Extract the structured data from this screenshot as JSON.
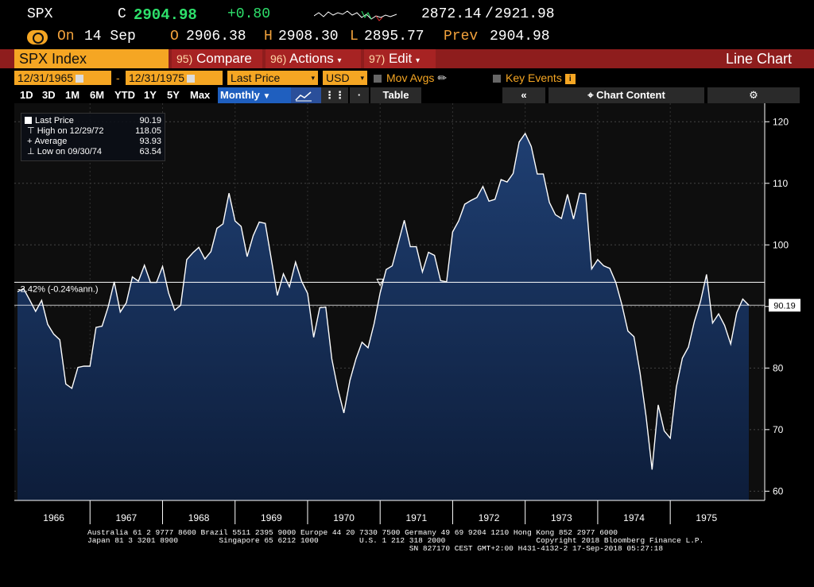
{
  "quote": {
    "ticker": "SPX",
    "close_prefix": "C",
    "close": "2904.98",
    "change": "+0.80",
    "range_low": "2872.14",
    "range_sep": "/",
    "range_high": "2921.98",
    "date_badge": "On",
    "date": "14 Sep",
    "open_label": "O",
    "open": "2906.38",
    "high_label": "H",
    "high": "2908.30",
    "low_label": "L",
    "low": "2895.77",
    "prev_label": "Prev",
    "prev": "2904.98"
  },
  "menubar": {
    "security": "SPX Index",
    "compare_num": "95)",
    "compare": "Compare",
    "actions_num": "96)",
    "actions": "Actions",
    "edit_num": "97)",
    "edit": "Edit",
    "chart_type": "Line Chart"
  },
  "controls": {
    "start_date": "12/31/1965",
    "dash": "-",
    "end_date": "12/31/1975",
    "field": "Last Price",
    "currency": "USD",
    "mov_avgs": "Mov Avgs",
    "key_events": "Key Events"
  },
  "range_buttons": [
    "1D",
    "3D",
    "1M",
    "6M",
    "YTD",
    "1Y",
    "5Y",
    "Max"
  ],
  "periodicity": "Monthly",
  "table_button": "Table",
  "chart_content_button": "Chart Content",
  "legend": {
    "last_price_label": "Last Price",
    "last_price": "90.19",
    "high_label": "High on 12/29/72",
    "high": "118.05",
    "average_label": "Average",
    "average": "93.93",
    "low_label": "Low on 09/30/74",
    "low": "63.54"
  },
  "colors": {
    "line": "#ffffff",
    "area_top": "#1f3f72",
    "area_bottom": "#0d1d3a",
    "accent": "#f5a623",
    "menubar": "#8e1d1d",
    "positive": "#2ee06b"
  },
  "chart_data": {
    "type": "area",
    "series": [
      {
        "name": "Last Price",
        "values": [
          92.4,
          92.9,
          91.1,
          89.2,
          91.0,
          87.1,
          85.5,
          84.6,
          77.4,
          76.7,
          80.1,
          80.3,
          80.3,
          86.6,
          86.8,
          89.9,
          94.0,
          89.1,
          90.6,
          94.8,
          94.1,
          96.7,
          93.9,
          93.9,
          96.5,
          92.2,
          89.4,
          90.2,
          97.6,
          98.7,
          99.6,
          97.7,
          98.9,
          102.7,
          103.4,
          108.4,
          103.9,
          103.0,
          98.1,
          101.5,
          103.7,
          103.5,
          97.7,
          91.8,
          95.3,
          93.2,
          97.2,
          94.1,
          92.1,
          85.0,
          89.8,
          89.9,
          81.5,
          76.6,
          72.7,
          78.0,
          81.5,
          84.2,
          83.3,
          87.2,
          92.2,
          96.0,
          96.6,
          100.3,
          104.0,
          99.7,
          99.7,
          95.6,
          98.8,
          98.3,
          94.2,
          94.0,
          102.1,
          103.9,
          106.6,
          107.2,
          107.7,
          109.5,
          107.1,
          107.4,
          110.6,
          110.2,
          111.6,
          116.7,
          118.1,
          116.0,
          111.5,
          111.5,
          106.9,
          104.9,
          104.3,
          108.2,
          104.2,
          108.4,
          108.3,
          96.1,
          97.6,
          96.6,
          96.2,
          93.9,
          90.3,
          86.0,
          85.1,
          79.3,
          72.2,
          63.5,
          74.0,
          69.8,
          68.6,
          76.9,
          81.6,
          83.4,
          87.6,
          90.8,
          95.2,
          87.3,
          88.8,
          86.9,
          83.9,
          89.0,
          91.2,
          90.2
        ],
        "average": 93.93,
        "average_label": "-2.42% (-0.24%ann.)"
      }
    ],
    "x_start_year": 1966,
    "xticks": [
      "1966",
      "1967",
      "1968",
      "1969",
      "1970",
      "1971",
      "1972",
      "1973",
      "1974",
      "1975"
    ],
    "yticks": [
      60,
      70,
      80,
      90,
      100,
      110,
      120
    ],
    "ylim": [
      58.5,
      123
    ],
    "last_value_label": "90.19",
    "grid": true,
    "legend_position": "top-left"
  },
  "footer": {
    "line1": "Australia 61 2 9777 8600 Brazil 5511 2395 9000 Europe 44 20 7330 7500 Germany 49 69 9204 1210 Hong Kong 852 2977 6000",
    "line2": "Japan 81 3 3201 8900         Singapore 65 6212 1000         U.S. 1 212 318 2000                    Copyright 2018 Bloomberg Finance L.P.",
    "line3": "                                                                       SN 827170 CEST GMT+2:00 H431-4132-2 17-Sep-2018 05:27:18"
  }
}
